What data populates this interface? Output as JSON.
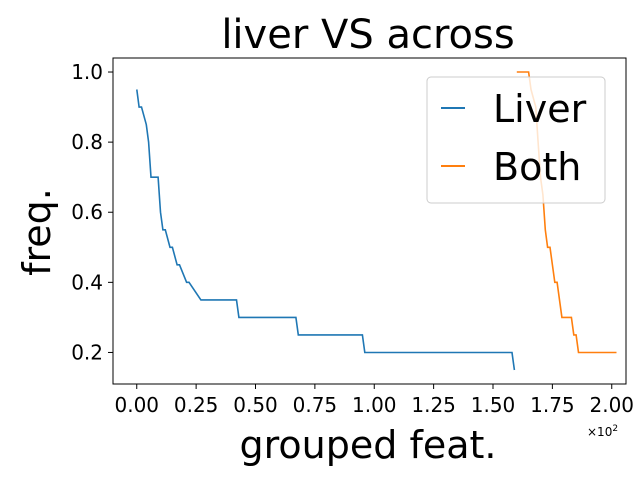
{
  "chart_data": {
    "type": "line",
    "title": "liver VS across",
    "xlabel": "grouped feat.",
    "ylabel": "freq.",
    "x_scale_label": "×10",
    "x_scale_exponent": "2",
    "xlim": [
      -0.1,
      2.06
    ],
    "ylim": [
      0.11,
      1.04
    ],
    "x_ticks": [
      0.0,
      0.25,
      0.5,
      0.75,
      1.0,
      1.25,
      1.5,
      1.75,
      2.0
    ],
    "x_tick_labels": [
      "0.00",
      "0.25",
      "0.50",
      "0.75",
      "1.00",
      "1.25",
      "1.50",
      "1.75",
      "2.00"
    ],
    "y_ticks": [
      0.2,
      0.4,
      0.6,
      0.8,
      1.0
    ],
    "y_tick_labels": [
      "0.2",
      "0.4",
      "0.6",
      "0.8",
      "1.0"
    ],
    "grid": false,
    "legend_position": "top-right",
    "series": [
      {
        "name": "Liver",
        "color": "#1f77b4",
        "x": [
          0.0,
          0.01,
          0.02,
          0.04,
          0.05,
          0.06,
          0.07,
          0.09,
          0.1,
          0.11,
          0.12,
          0.14,
          0.15,
          0.17,
          0.18,
          0.21,
          0.22,
          0.27,
          0.28,
          0.42,
          0.43,
          0.67,
          0.68,
          0.95,
          0.96,
          1.58,
          1.59
        ],
        "y": [
          0.95,
          0.9,
          0.9,
          0.85,
          0.8,
          0.7,
          0.7,
          0.7,
          0.6,
          0.55,
          0.55,
          0.5,
          0.5,
          0.45,
          0.45,
          0.4,
          0.4,
          0.35,
          0.35,
          0.35,
          0.3,
          0.3,
          0.25,
          0.25,
          0.2,
          0.2,
          0.15
        ]
      },
      {
        "name": "Both",
        "color": "#ff7f0e",
        "x": [
          1.6,
          1.65,
          1.66,
          1.68,
          1.69,
          1.7,
          1.71,
          1.72,
          1.73,
          1.74,
          1.75,
          1.76,
          1.77,
          1.78,
          1.79,
          1.8,
          1.83,
          1.84,
          1.85,
          1.86,
          1.87,
          1.88,
          2.02
        ],
        "y": [
          1.0,
          1.0,
          0.95,
          0.9,
          0.8,
          0.7,
          0.65,
          0.55,
          0.5,
          0.5,
          0.45,
          0.4,
          0.4,
          0.35,
          0.3,
          0.3,
          0.3,
          0.25,
          0.25,
          0.2,
          0.2,
          0.2,
          0.2
        ]
      }
    ]
  }
}
